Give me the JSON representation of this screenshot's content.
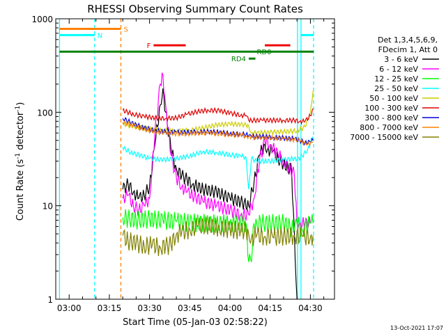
{
  "chart_data": {
    "type": "line",
    "title": "RHESSI Observing Summary Count Rates",
    "xlabel": "Start Time (05-Jan-03 02:58:22)",
    "ylabel_main": "Count Rate (s",
    "ylabel_sup": "-1",
    "ylabel_end": " detector",
    "ylabel_close": ")",
    "yscale": "log",
    "ylim": [
      1,
      1000
    ],
    "xlim_minutes": [
      -5,
      99
    ],
    "x_ticks": [
      {
        "value": 0,
        "label": "03:00"
      },
      {
        "value": 15,
        "label": "03:15"
      },
      {
        "value": 30,
        "label": "03:30"
      },
      {
        "value": 45,
        "label": "03:45"
      },
      {
        "value": 60,
        "label": "04:00"
      },
      {
        "value": 75,
        "label": "04:15"
      },
      {
        "value": 90,
        "label": "04:30"
      }
    ],
    "y_ticks": [
      {
        "value": 1,
        "label": "1"
      },
      {
        "value": 10,
        "label": "10"
      },
      {
        "value": 100,
        "label": "100"
      },
      {
        "value": 1000,
        "label": "1000"
      }
    ],
    "legend_header": [
      "Det 1,3,4,5,6,9,",
      "FDecim 1, Att 0"
    ],
    "series": [
      {
        "name": "3 - 6 keV",
        "color": "#000000",
        "x": [
          20,
          22,
          24,
          26,
          28,
          30,
          32,
          34,
          35,
          36,
          38,
          40,
          42,
          44,
          46,
          50,
          55,
          60,
          64,
          67,
          69,
          71,
          73,
          74,
          76,
          78,
          80,
          83,
          85
        ],
        "y": [
          15,
          17,
          14,
          12,
          13,
          16,
          45,
          120,
          180,
          100,
          40,
          25,
          21,
          19,
          17,
          15,
          14,
          12,
          11,
          10,
          18,
          35,
          45,
          40,
          38,
          32,
          28,
          24,
          1
        ]
      },
      {
        "name": "6 - 12 keV",
        "color": "#ff00ff",
        "x": [
          20,
          22,
          24,
          26,
          28,
          30,
          32,
          34,
          35,
          36,
          38,
          40,
          42,
          44,
          46,
          50,
          55,
          60,
          64,
          67,
          69,
          71,
          73,
          75,
          78,
          80,
          82,
          84,
          85,
          86,
          87,
          88,
          90
        ],
        "y": [
          12,
          13,
          10,
          9,
          10,
          12,
          60,
          200,
          250,
          120,
          35,
          20,
          16,
          14,
          13,
          11,
          10,
          9,
          8,
          8,
          12,
          30,
          50,
          45,
          35,
          30,
          25,
          22,
          6.5,
          6.5,
          6.5,
          6.5,
          6.5
        ]
      },
      {
        "name": "12 - 25 keV",
        "color": "#00ff00",
        "x": [
          20,
          25,
          30,
          35,
          40,
          45,
          50,
          55,
          60,
          64,
          66,
          67,
          68,
          69,
          70,
          72,
          75,
          80,
          84,
          85,
          87,
          90,
          91
        ],
        "y": [
          7.5,
          7,
          7.2,
          7,
          6.8,
          6.6,
          6.5,
          6.4,
          6.5,
          6.5,
          6.5,
          2.5,
          2.5,
          6.5,
          6.5,
          6.5,
          6.5,
          6.5,
          5.5,
          6.5,
          5.5,
          6.5,
          6.5
        ]
      },
      {
        "name": "25 - 50 keV",
        "color": "#00ffff",
        "x": [
          20,
          23,
          26,
          30,
          35,
          40,
          45,
          50,
          55,
          60,
          64,
          66,
          67,
          68,
          70,
          73,
          76,
          80,
          84,
          85,
          87,
          89,
          91
        ],
        "y": [
          42,
          37,
          35,
          32,
          31,
          32,
          34,
          38,
          37,
          35,
          34,
          33,
          15,
          32,
          30,
          30,
          30,
          31,
          32,
          31,
          34,
          40,
          55
        ]
      },
      {
        "name": "50 - 100 keV",
        "color": "#cccc00",
        "x": [
          20,
          25,
          30,
          35,
          40,
          45,
          50,
          55,
          60,
          64,
          66,
          67,
          68,
          70,
          75,
          80,
          85,
          88,
          90,
          91
        ],
        "y": [
          75,
          70,
          66,
          64,
          63,
          64,
          68,
          73,
          75,
          74,
          73,
          71,
          60,
          60,
          61,
          62,
          63,
          70,
          100,
          170
        ]
      },
      {
        "name": "100 - 300 keV",
        "color": "#dd0000",
        "x": [
          20,
          24,
          28,
          32,
          36,
          40,
          44,
          48,
          52,
          56,
          60,
          64,
          66,
          67,
          68,
          72,
          76,
          80,
          84,
          86,
          88,
          90,
          91
        ],
        "y": [
          105,
          95,
          90,
          87,
          86,
          87,
          95,
          102,
          105,
          104,
          98,
          93,
          92,
          82,
          82,
          82,
          82,
          82,
          82,
          80,
          80,
          92,
          110
        ]
      },
      {
        "name": "300 - 800 keV",
        "color": "#0000dd",
        "x": [
          20,
          24,
          28,
          32,
          36,
          40,
          44,
          48,
          52,
          56,
          60,
          64,
          66,
          67,
          68,
          72,
          76,
          80,
          84,
          86,
          88,
          90,
          91
        ],
        "y": [
          86,
          75,
          68,
          64,
          62,
          61,
          61,
          62,
          62,
          61,
          59,
          58,
          58,
          56,
          55,
          55,
          54,
          53,
          52,
          50,
          47,
          48,
          50
        ]
      },
      {
        "name": "800 - 7000 keV",
        "color": "#ff8000",
        "x": [
          20,
          24,
          28,
          32,
          36,
          40,
          44,
          48,
          52,
          56,
          60,
          64,
          66,
          67,
          68,
          72,
          76,
          80,
          84,
          86,
          88,
          90,
          91
        ],
        "y": [
          78,
          72,
          66,
          62,
          60,
          59,
          59,
          60,
          60,
          59,
          58,
          57,
          56,
          55,
          54,
          54,
          53,
          52,
          51,
          50,
          47,
          46,
          48
        ]
      },
      {
        "name": "7000 - 15000 keV",
        "color": "#808000",
        "x": [
          20,
          22,
          25,
          28,
          31,
          34,
          36,
          38,
          40,
          42,
          45,
          48,
          52,
          56,
          60,
          64,
          66,
          67,
          68,
          70,
          73,
          76,
          80,
          84,
          87,
          90,
          91
        ],
        "y": [
          4.8,
          4.2,
          4.0,
          3.7,
          3.8,
          3.6,
          3.7,
          3.8,
          5.0,
          5.2,
          5.6,
          6.0,
          6.2,
          5.8,
          5.6,
          5.4,
          5.5,
          5.0,
          4.5,
          4.8,
          4.7,
          4.6,
          4.7,
          4.8,
          4.7,
          4.6,
          4.8
        ]
      }
    ],
    "vertical_lines": [
      {
        "x": -3.6,
        "color": "#00ffff",
        "style": "solid"
      },
      {
        "x": 9.5,
        "color": "#00ffff",
        "style": "dashed"
      },
      {
        "x": 19.3,
        "color": "#ff8000",
        "style": "dashed"
      },
      {
        "x": 85.2,
        "color": "#00ffff",
        "style": "solid"
      },
      {
        "x": 86.5,
        "color": "#00ffff",
        "style": "solid"
      },
      {
        "x": 91.2,
        "color": "#00ffff",
        "style": "dashed"
      }
    ],
    "flag_bars": [
      {
        "label": "S",
        "color": "#ff8000",
        "x0": -3.6,
        "x1": 19.3,
        "y": 780,
        "label_side": "right"
      },
      {
        "label": "N",
        "color": "#00ffff",
        "x0": -3.6,
        "x1": 9.5,
        "y": 670,
        "label_side": "right"
      },
      {
        "label": "",
        "color": "#00ffff",
        "x0": 86.5,
        "x1": 91.2,
        "y": 670,
        "label_side": "none"
      },
      {
        "label": "F",
        "color": "#ee0000",
        "x0": 31.5,
        "x1": 43.5,
        "y": 520,
        "label_side": "left"
      },
      {
        "label": "",
        "color": "#ee0000",
        "x0": 73,
        "x1": 82.5,
        "y": 520,
        "label_side": "none"
      },
      {
        "label": "RD0",
        "color": "#008000",
        "x0": -3.6,
        "x1": 91.2,
        "y": 445,
        "label_side": "mid"
      },
      {
        "label": "RD4",
        "color": "#008000",
        "x0": 67,
        "x1": 69.5,
        "y": 375,
        "label_side": "left"
      }
    ]
  },
  "footer_date": "13-Oct-2021 17:07"
}
